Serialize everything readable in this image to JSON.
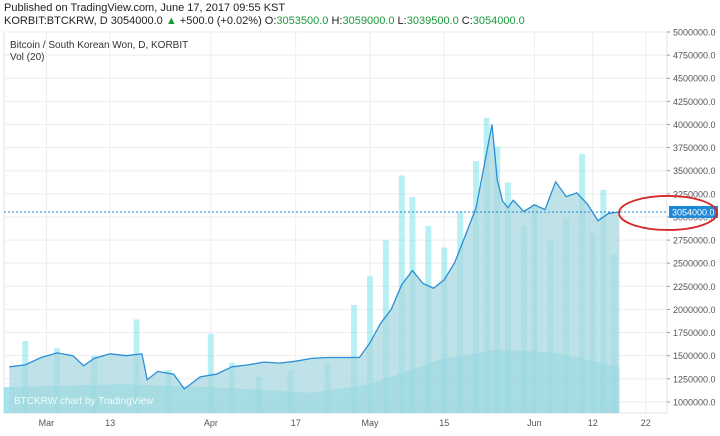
{
  "header": {
    "published": "Published on TradingView.com, June 17, 2017 09:55 KST",
    "symbol": "KORBIT:BTCKRW, D",
    "last": "3054000.0",
    "change": "+500.0 (+0.02%)",
    "o_label": "O:",
    "o": "3053500.0",
    "h_label": "H:",
    "h": "3059000.0",
    "l_label": "L:",
    "l": "3039500.0",
    "c_label": "C:",
    "c": "3054000.0"
  },
  "legend": {
    "title": "Bitcoin / South Korean Won, D, KORBIT",
    "volume": "Vol (20)"
  },
  "watermark": "BTCKRW chart by TradingView",
  "colors": {
    "area_fill": "#a8d8df",
    "line": "#2a8fd6",
    "volume": "#7fe3ea",
    "volume_ma": "#5ed0e0",
    "price_tag": "#1e88d8",
    "highlight": "#d62828",
    "up": "#1a9a3a"
  },
  "chart_data": {
    "type": "area",
    "title": "Bitcoin / South Korean Won, D, KORBIT",
    "y_ticks": [
      "1000000.0",
      "1250000.0",
      "1500000.0",
      "1750000.0",
      "2000000.0",
      "2250000.0",
      "2500000.0",
      "2750000.0",
      "3000000.0",
      "3250000.0",
      "3500000.0",
      "3750000.0",
      "4000000.0",
      "4250000.0",
      "4500000.0",
      "4750000.0",
      "5000000.0"
    ],
    "ylim": [
      880000,
      5000000
    ],
    "x_ticks": [
      {
        "label": "Mar",
        "date": "2017-03-01"
      },
      {
        "label": "13",
        "date": "2017-03-13"
      },
      {
        "label": "Apr",
        "date": "2017-04-01"
      },
      {
        "label": "17",
        "date": "2017-04-17"
      },
      {
        "label": "May",
        "date": "2017-05-01"
      },
      {
        "label": "15",
        "date": "2017-05-15"
      },
      {
        "label": "Jun",
        "date": "2017-06-01"
      },
      {
        "label": "12",
        "date": "2017-06-12"
      },
      {
        "label": "22",
        "date": "2017-06-22"
      }
    ],
    "last_price": 3054000,
    "last_price_label": "3054000.0",
    "series": [
      {
        "x": [
          "2017-02-22",
          "2017-02-25",
          "2017-02-28",
          "2017-03-03",
          "2017-03-06",
          "2017-03-08",
          "2017-03-10",
          "2017-03-13",
          "2017-03-16",
          "2017-03-19",
          "2017-03-20",
          "2017-03-22",
          "2017-03-25",
          "2017-03-27",
          "2017-03-30",
          "2017-04-02",
          "2017-04-05",
          "2017-04-08",
          "2017-04-11",
          "2017-04-14",
          "2017-04-17",
          "2017-04-20",
          "2017-04-23",
          "2017-04-26",
          "2017-04-29",
          "2017-05-01",
          "2017-05-03",
          "2017-05-05",
          "2017-05-07",
          "2017-05-09",
          "2017-05-11",
          "2017-05-13",
          "2017-05-15",
          "2017-05-17",
          "2017-05-19",
          "2017-05-21",
          "2017-05-23",
          "2017-05-24",
          "2017-05-25",
          "2017-05-26",
          "2017-05-27",
          "2017-05-28",
          "2017-05-30",
          "2017-06-01",
          "2017-06-03",
          "2017-06-05",
          "2017-06-07",
          "2017-06-09",
          "2017-06-11",
          "2017-06-13",
          "2017-06-15",
          "2017-06-17"
        ],
        "y": [
          1380000,
          1400000,
          1480000,
          1530000,
          1500000,
          1390000,
          1470000,
          1520000,
          1500000,
          1520000,
          1240000,
          1330000,
          1300000,
          1140000,
          1270000,
          1300000,
          1380000,
          1400000,
          1430000,
          1420000,
          1440000,
          1470000,
          1480000,
          1480000,
          1480000,
          1640000,
          1850000,
          2000000,
          2270000,
          2420000,
          2280000,
          2230000,
          2320000,
          2510000,
          2800000,
          3100000,
          3700000,
          4000000,
          3400000,
          3170000,
          3100000,
          3180000,
          3060000,
          3130000,
          3080000,
          3380000,
          3220000,
          3260000,
          3140000,
          2960000,
          3040000,
          3054000
        ]
      }
    ],
    "volume": [
      {
        "x": "2017-02-25",
        "v": 1.0
      },
      {
        "x": "2017-03-03",
        "v": 0.9
      },
      {
        "x": "2017-03-10",
        "v": 0.8
      },
      {
        "x": "2017-03-18",
        "v": 1.3
      },
      {
        "x": "2017-03-24",
        "v": 0.6
      },
      {
        "x": "2017-04-01",
        "v": 1.1
      },
      {
        "x": "2017-04-05",
        "v": 0.7
      },
      {
        "x": "2017-04-10",
        "v": 0.5
      },
      {
        "x": "2017-04-16",
        "v": 0.6
      },
      {
        "x": "2017-04-23",
        "v": 0.7
      },
      {
        "x": "2017-04-28",
        "v": 1.5
      },
      {
        "x": "2017-05-01",
        "v": 1.9
      },
      {
        "x": "2017-05-04",
        "v": 2.4
      },
      {
        "x": "2017-05-07",
        "v": 3.3
      },
      {
        "x": "2017-05-09",
        "v": 3.0
      },
      {
        "x": "2017-05-12",
        "v": 2.6
      },
      {
        "x": "2017-05-15",
        "v": 2.3
      },
      {
        "x": "2017-05-18",
        "v": 2.8
      },
      {
        "x": "2017-05-21",
        "v": 3.5
      },
      {
        "x": "2017-05-23",
        "v": 4.1
      },
      {
        "x": "2017-05-25",
        "v": 3.7
      },
      {
        "x": "2017-05-27",
        "v": 3.2
      },
      {
        "x": "2017-05-30",
        "v": 2.6
      },
      {
        "x": "2017-06-01",
        "v": 2.9
      },
      {
        "x": "2017-06-04",
        "v": 2.4
      },
      {
        "x": "2017-06-07",
        "v": 2.7
      },
      {
        "x": "2017-06-10",
        "v": 3.6
      },
      {
        "x": "2017-06-12",
        "v": 2.5
      },
      {
        "x": "2017-06-14",
        "v": 3.1
      },
      {
        "x": "2017-06-16",
        "v": 2.2
      }
    ]
  }
}
